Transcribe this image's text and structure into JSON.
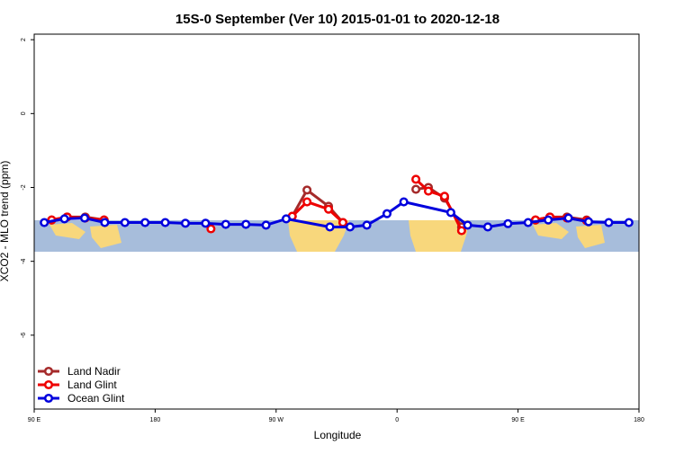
{
  "chart_data": {
    "type": "line",
    "title": "15S-0 September (Ver 10)   2015-01-01 to 2020-12-18",
    "x_label": "Longitude",
    "y_label": "XCO2 - MLO trend (ppm)",
    "xlim": [
      90,
      540
    ],
    "xticks": [
      {
        "value": 90,
        "label": "90 E"
      },
      {
        "value": 180,
        "label": "180"
      },
      {
        "value": 270,
        "label": "90 W"
      },
      {
        "value": 360,
        "label": "0"
      },
      {
        "value": 450,
        "label": "90 E"
      },
      {
        "value": 540,
        "label": "180"
      }
    ],
    "ylim": [
      -8,
      2.15
    ],
    "yticks": [
      2,
      0,
      -2,
      -4,
      -6
    ],
    "legend": "bottom-left",
    "series": [
      {
        "name": "Land Nadir",
        "color": "#a52a2a",
        "x": [
          103,
          114.5,
          128,
          142,
          null,
          282,
          293,
          309,
          319.7,
          null,
          374,
          383.3,
          395.3,
          408,
          null,
          463,
          473.7,
          486.4,
          501
        ],
        "values": [
          -2.88,
          -2.8,
          -2.8,
          -2.88,
          null,
          -2.78,
          -2.07,
          -2.51,
          -2.95,
          null,
          -2.05,
          -2.0,
          -2.29,
          -3.07,
          null,
          -2.88,
          -2.8,
          -2.8,
          -2.88
        ]
      },
      {
        "name": "Land Glint",
        "color": "#ee0000",
        "x": [
          103,
          114.5,
          128,
          142,
          null,
          221.5,
          null,
          282,
          293,
          309,
          319.7,
          null,
          374,
          383.3,
          395.3,
          408,
          null,
          463,
          473.7,
          486.4,
          501
        ],
        "values": [
          -2.88,
          -2.8,
          -2.83,
          -2.88,
          null,
          -3.12,
          null,
          -2.78,
          -2.39,
          -2.59,
          -2.95,
          null,
          -1.78,
          -2.1,
          -2.24,
          -3.17,
          null,
          -2.88,
          -2.8,
          -2.83,
          -2.9
        ]
      },
      {
        "name": "Ocean Glint",
        "color": "#0000dd",
        "x": [
          97.5,
          112.5,
          127.5,
          142.5,
          157.5,
          172.5,
          187.5,
          202.5,
          217.5,
          232.5,
          247.5,
          262.5,
          277.5,
          310,
          325,
          337.5,
          352.5,
          365,
          400,
          412.5,
          427.5,
          442.5,
          457.5,
          472.5,
          487.5,
          502.5,
          517.5,
          532.5
        ],
        "values": [
          -2.95,
          -2.85,
          -2.83,
          -2.95,
          -2.95,
          -2.95,
          -2.95,
          -2.97,
          -2.97,
          -3.0,
          -3.0,
          -3.02,
          -2.85,
          -3.07,
          -3.07,
          -3.02,
          -2.71,
          -2.39,
          -2.68,
          -3.02,
          -3.07,
          -2.98,
          -2.95,
          -2.88,
          -2.83,
          -2.93,
          -2.95,
          -2.95
        ]
      }
    ]
  }
}
